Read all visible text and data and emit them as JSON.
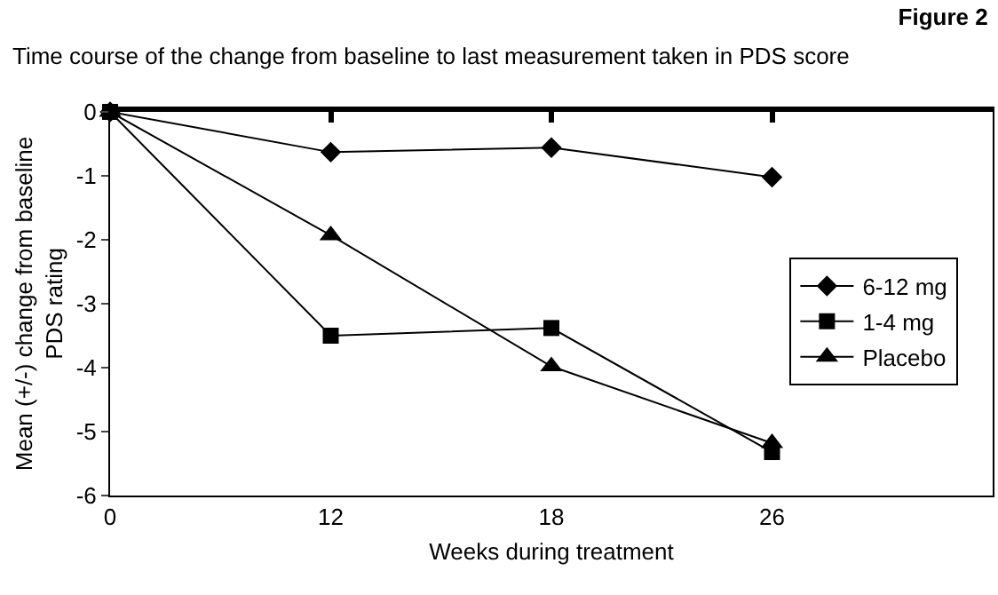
{
  "chart_data": {
    "type": "line",
    "title": "Figure 2",
    "subtitle": "Time course of the change from baseline to last measurement taken in PDS score",
    "xlabel": "Weeks during treatment",
    "ylabel": "Mean (+/-) change from baseline\nPDS rating",
    "categories": [
      "0",
      "12",
      "18",
      "26"
    ],
    "series": [
      {
        "name": "6-12 mg",
        "color": "#000000",
        "marker": "diamond",
        "values": [
          0,
          -0.63,
          -0.56,
          -1.02
        ]
      },
      {
        "name": "1-4 mg",
        "color": "#000000",
        "marker": "square",
        "values": [
          0,
          -3.5,
          -3.38,
          -5.32
        ]
      },
      {
        "name": "Placebo",
        "color": "#000000",
        "marker": "triangle",
        "values": [
          0,
          -1.93,
          -3.98,
          -5.18
        ]
      }
    ],
    "ylim": [
      -6,
      0
    ],
    "yticks": [
      -6,
      -5,
      -4,
      -3,
      -2,
      -1,
      0
    ],
    "legend": "right",
    "line_style": "solid"
  }
}
